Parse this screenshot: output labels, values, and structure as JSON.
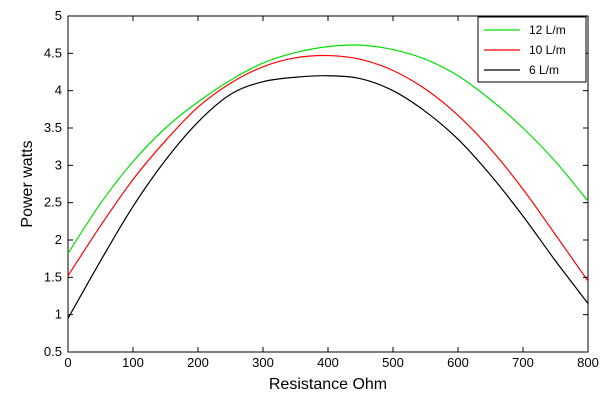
{
  "chart_data": {
    "type": "line",
    "title": "",
    "xlabel": "Resistance Ohm",
    "ylabel": "Power watts",
    "xlim": [
      0,
      800
    ],
    "ylim": [
      0.5,
      5
    ],
    "xticks": [
      0,
      100,
      200,
      300,
      400,
      500,
      600,
      700,
      800
    ],
    "yticks": [
      0.5,
      1,
      1.5,
      2,
      2.5,
      3,
      3.5,
      4,
      4.5,
      5
    ],
    "xtick_labels": [
      "0",
      "100",
      "200",
      "300",
      "400",
      "500",
      "600",
      "700",
      "800"
    ],
    "ytick_labels": [
      "0.5",
      "1",
      "1.5",
      "2",
      "2.5",
      "3",
      "3.5",
      "4",
      "4.5",
      "5"
    ],
    "grid": false,
    "legend_position": "top-right",
    "series": [
      {
        "name": "12 L/m",
        "color": "#00e000",
        "x": [
          0,
          50,
          100,
          150,
          200,
          250,
          300,
          350,
          400,
          450,
          500,
          550,
          600,
          650,
          700,
          750,
          800
        ],
        "y": [
          1.82,
          2.49,
          3.05,
          3.5,
          3.85,
          4.14,
          4.37,
          4.51,
          4.59,
          4.61,
          4.55,
          4.42,
          4.2,
          3.88,
          3.5,
          3.05,
          2.52
        ]
      },
      {
        "name": "10 L/m",
        "color": "#ff0000",
        "x": [
          0,
          50,
          100,
          150,
          200,
          250,
          300,
          350,
          400,
          450,
          500,
          550,
          600,
          650,
          700,
          750,
          800
        ],
        "y": [
          1.52,
          2.19,
          2.81,
          3.33,
          3.78,
          4.1,
          4.32,
          4.44,
          4.47,
          4.42,
          4.27,
          4.02,
          3.67,
          3.22,
          2.68,
          2.07,
          1.45
        ]
      },
      {
        "name": "6 L/m",
        "color": "#000000",
        "x": [
          0,
          50,
          100,
          150,
          200,
          250,
          300,
          350,
          400,
          450,
          500,
          550,
          600,
          650,
          700,
          750,
          800
        ],
        "y": [
          0.95,
          1.72,
          2.45,
          3.07,
          3.58,
          3.95,
          4.12,
          4.18,
          4.2,
          4.16,
          4.0,
          3.72,
          3.35,
          2.87,
          2.32,
          1.72,
          1.15
        ]
      }
    ]
  }
}
